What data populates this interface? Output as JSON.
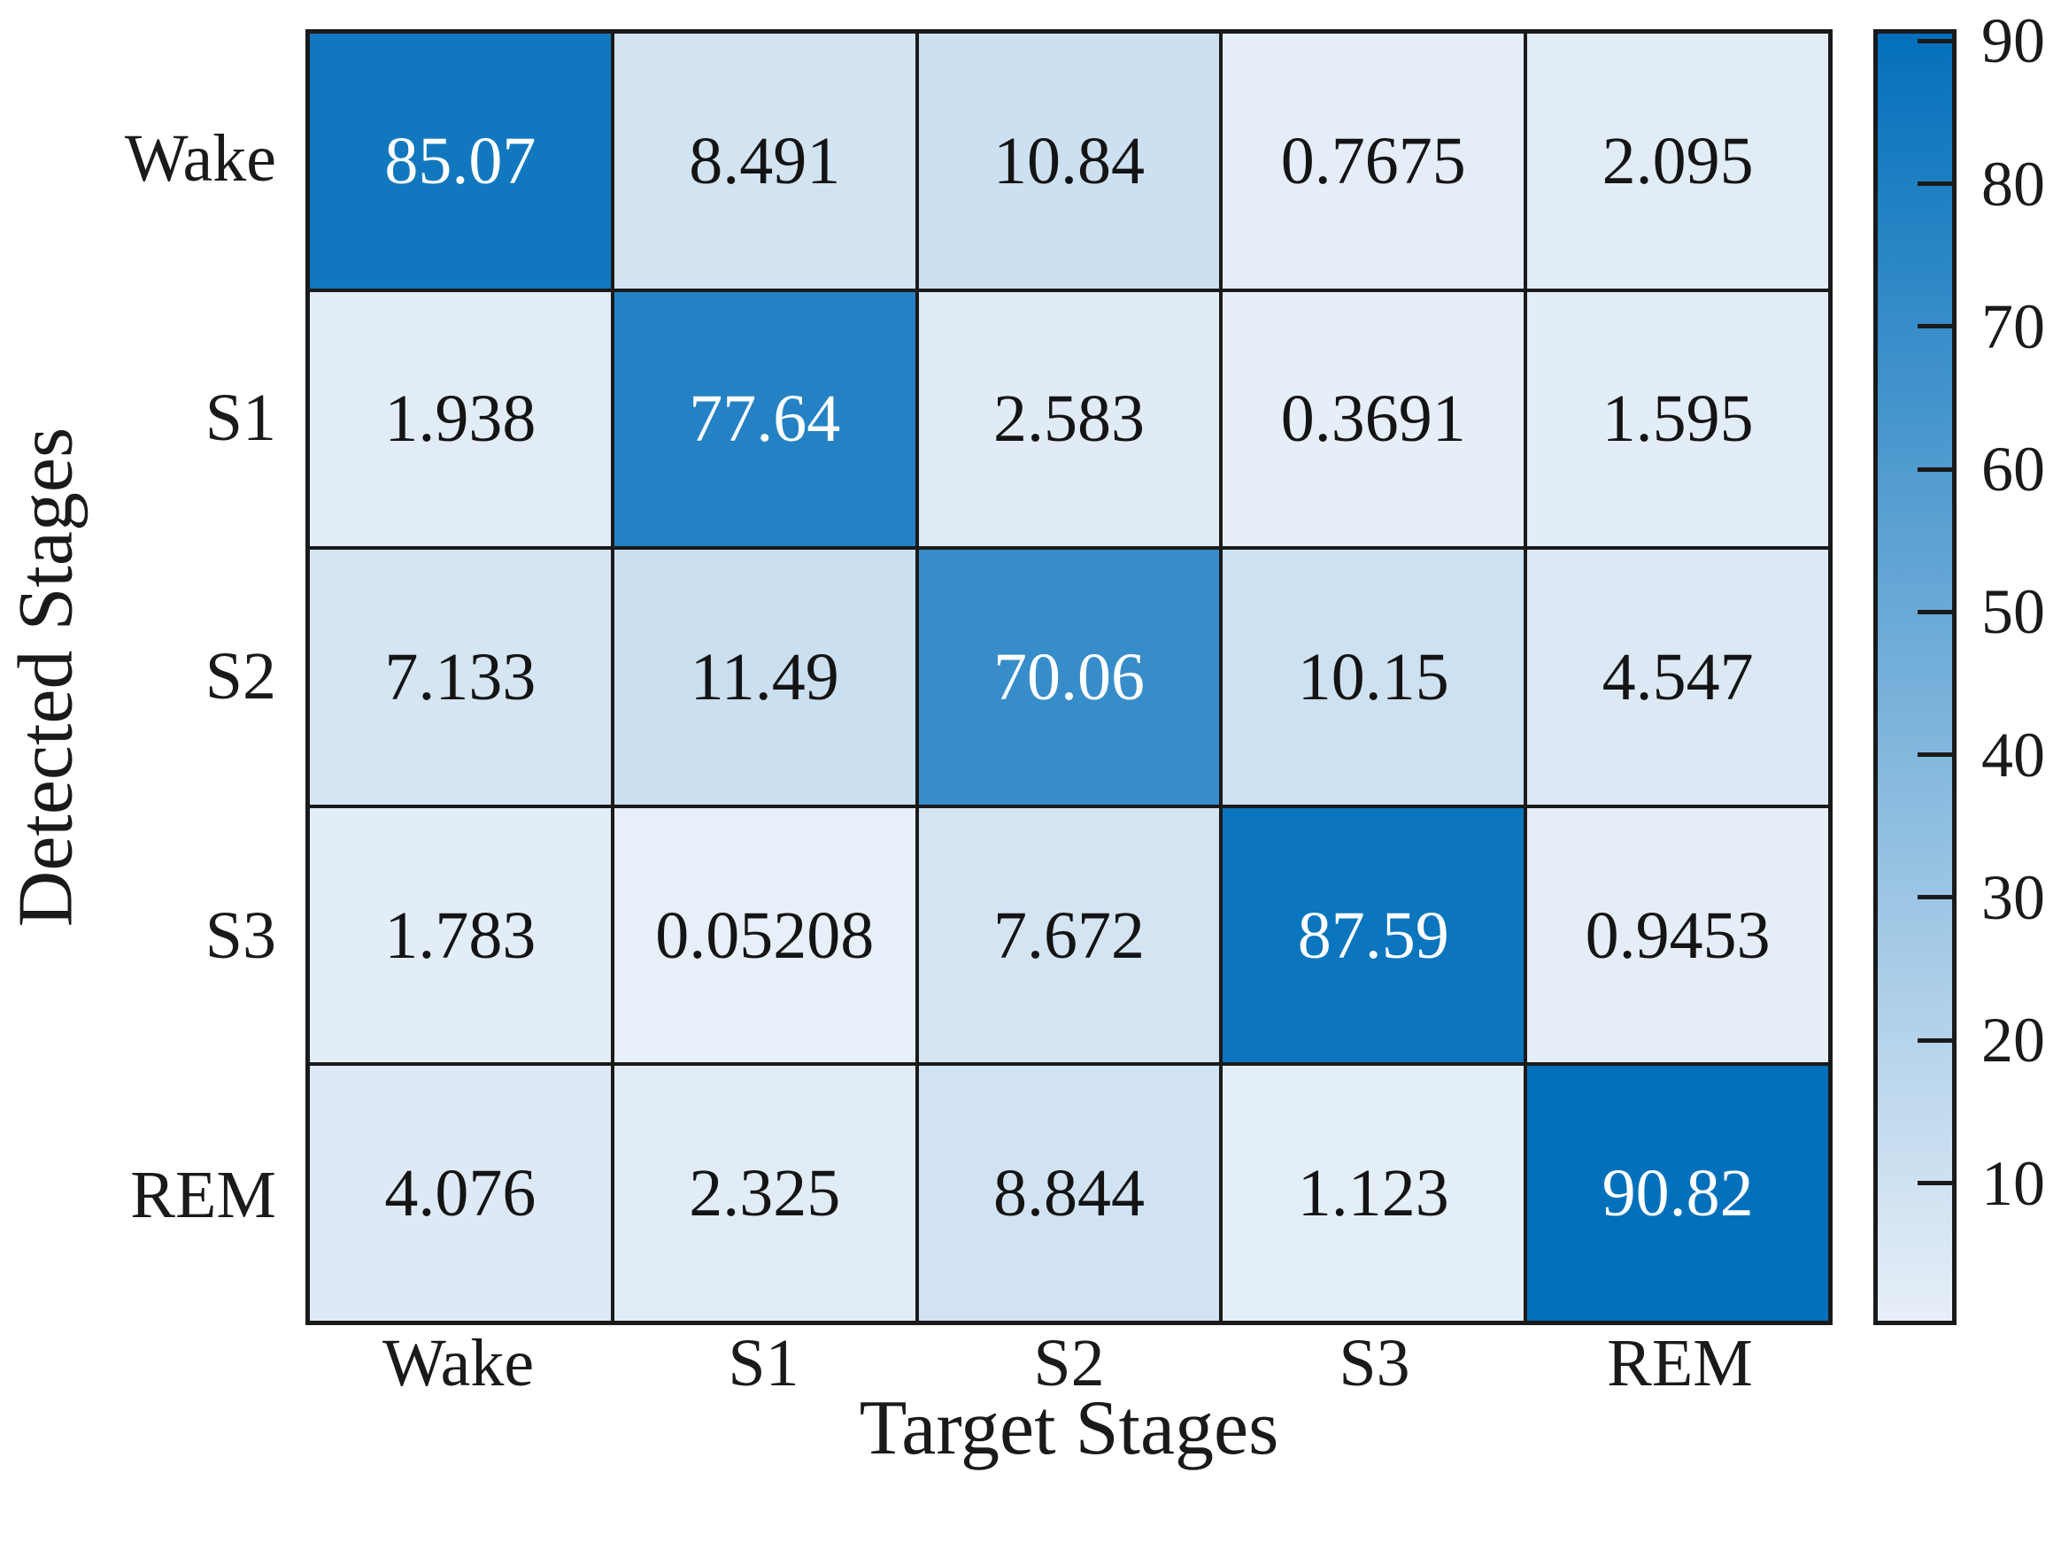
{
  "chart_data": {
    "type": "heatmap",
    "title": "",
    "xlabel": "Target Stages",
    "ylabel": "Detected Stages",
    "x_categories": [
      "Wake",
      "S1",
      "S2",
      "S3",
      "REM"
    ],
    "y_categories": [
      "Wake",
      "S1",
      "S2",
      "S3",
      "REM"
    ],
    "values_percent": [
      [
        85.07,
        8.491,
        10.84,
        0.7675,
        2.095
      ],
      [
        1.938,
        77.64,
        2.583,
        0.3691,
        1.595
      ],
      [
        7.133,
        11.49,
        70.06,
        10.15,
        4.547
      ],
      [
        1.783,
        0.05208,
        7.672,
        87.59,
        0.9453
      ],
      [
        4.076,
        2.325,
        8.844,
        1.123,
        90.82
      ]
    ],
    "cell_labels": [
      [
        "85.07",
        "8.491",
        "10.84",
        "0.7675",
        "2.095"
      ],
      [
        "1.938",
        "77.64",
        "2.583",
        "0.3691",
        "1.595"
      ],
      [
        "7.133",
        "11.49",
        "70.06",
        "10.15",
        "4.547"
      ],
      [
        "1.783",
        "0.05208",
        "7.672",
        "87.59",
        "0.9453"
      ],
      [
        "4.076",
        "2.325",
        "8.844",
        "1.123",
        "90.82"
      ]
    ],
    "colorbar": {
      "position": "right",
      "tick_labels": [
        "90",
        "80",
        "70",
        "60",
        "50",
        "40",
        "30",
        "20",
        "10"
      ],
      "tick_values": [
        90,
        80,
        70,
        60,
        50,
        40,
        30,
        20,
        10
      ],
      "value_min": 0.05208,
      "value_max": 90.82,
      "color_low": "#E7EFF8",
      "color_high": "#0370BB"
    },
    "style": {
      "grid_line_color": "#1A1A1A",
      "cell_text_dark": "#141414",
      "cell_text_light": "#FFFFFF",
      "label_color": "#1A1A1A",
      "background": "#FFFFFF",
      "white_text_threshold": 0.5
    },
    "grid": true
  }
}
